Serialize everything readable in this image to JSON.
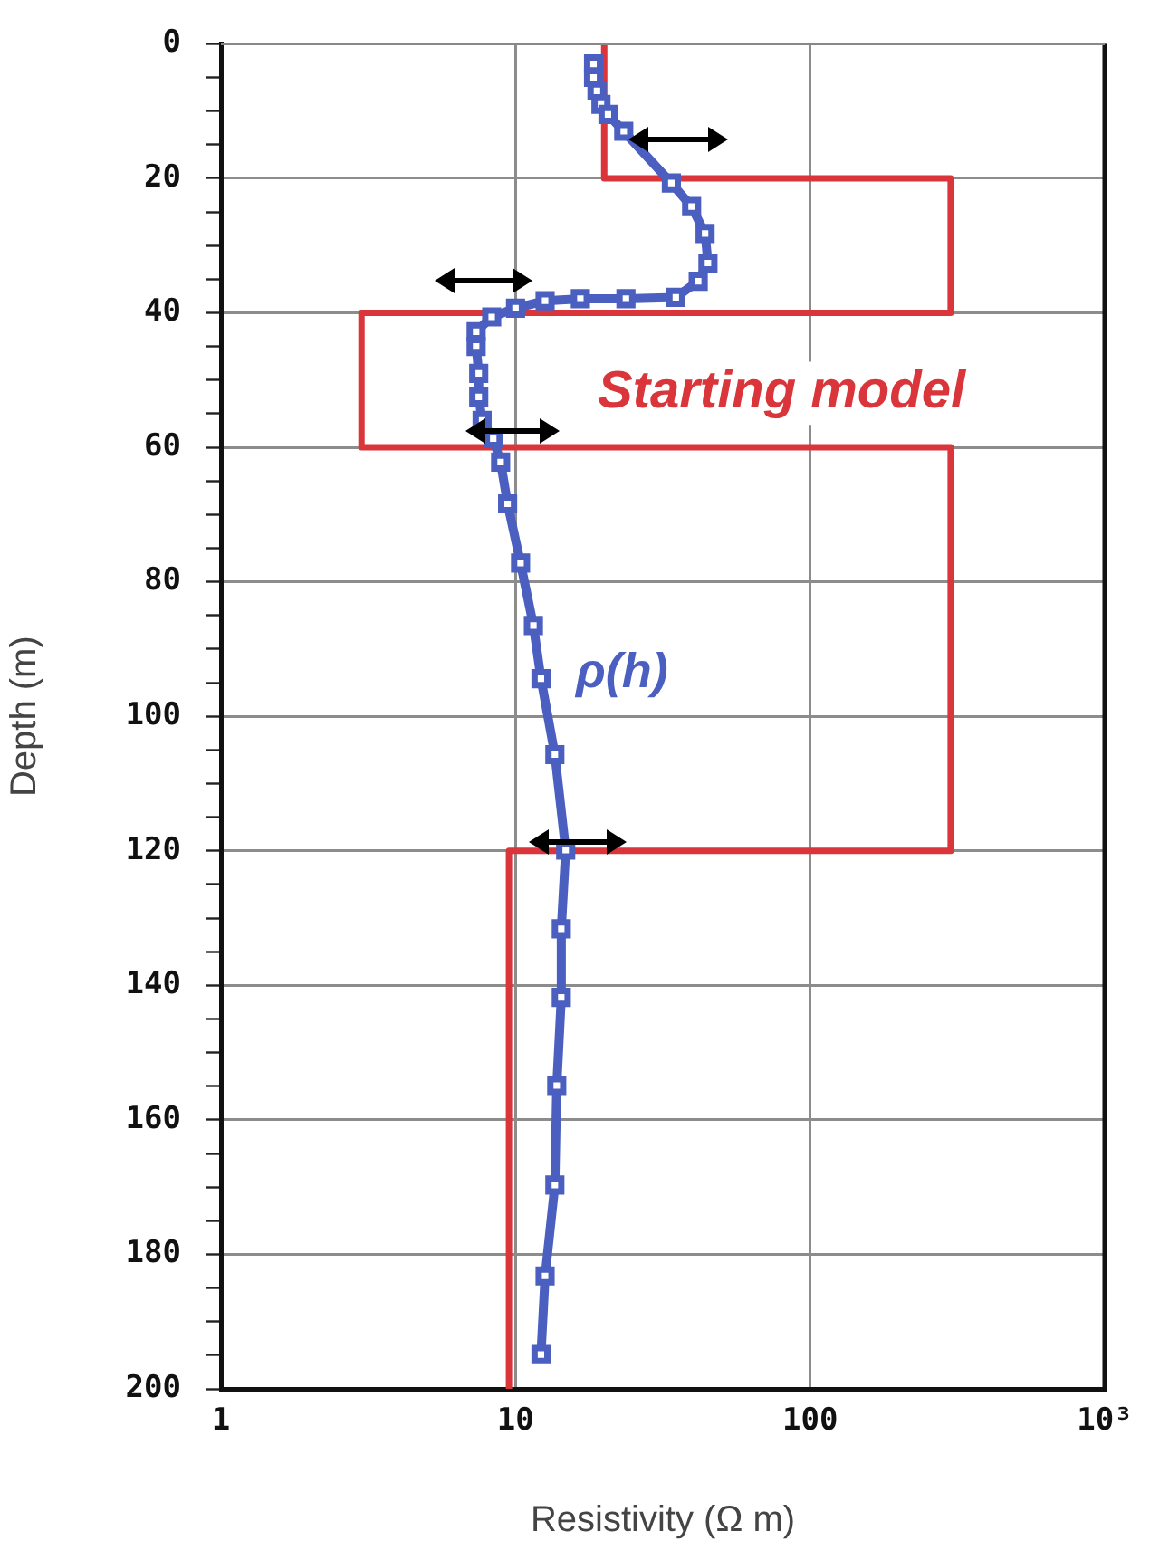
{
  "chart_data": {
    "type": "line",
    "xlabel": "Resistivity (Ω m)",
    "ylabel": "Depth (m)",
    "log": "x",
    "xlim": [
      1,
      1000
    ],
    "xticks": [
      1,
      10,
      100,
      {
        "value": 1000,
        "label": "10³"
      }
    ],
    "ylim": [
      200,
      0
    ],
    "yticks": [
      0,
      {
        "value": 5,
        "label": null
      },
      {
        "value": 10,
        "label": null
      },
      {
        "value": 15,
        "label": null
      },
      20,
      {
        "value": 25,
        "label": null
      },
      {
        "value": 30,
        "label": null
      },
      {
        "value": 35,
        "label": null
      },
      40,
      {
        "value": 45,
        "label": null
      },
      {
        "value": 50,
        "label": null
      },
      {
        "value": 55,
        "label": null
      },
      60,
      {
        "value": 65,
        "label": null
      },
      {
        "value": 70,
        "label": null
      },
      {
        "value": 75,
        "label": null
      },
      80,
      {
        "value": 85,
        "label": null
      },
      {
        "value": 90,
        "label": null
      },
      {
        "value": 95,
        "label": null
      },
      100,
      {
        "value": 105,
        "label": null
      },
      {
        "value": 110,
        "label": null
      },
      {
        "value": 115,
        "label": null
      },
      120,
      {
        "value": 125,
        "label": null
      },
      {
        "value": 130,
        "label": null
      },
      {
        "value": 135,
        "label": null
      },
      140,
      {
        "value": 145,
        "label": null
      },
      {
        "value": 150,
        "label": null
      },
      {
        "value": 155,
        "label": null
      },
      160,
      {
        "value": 165,
        "label": null
      },
      {
        "value": 170,
        "label": null
      },
      {
        "value": 175,
        "label": null
      },
      180,
      {
        "value": 185,
        "label": null
      },
      {
        "value": 190,
        "label": null
      },
      {
        "value": 195,
        "label": null
      },
      200
    ],
    "grid": true,
    "legend": false,
    "series": [
      {
        "name": "Starting model",
        "color": "#d9353a",
        "marker": "none",
        "x": [
          20,
          20,
          300,
          300,
          3,
          3,
          300,
          300,
          9.5,
          9.5
        ],
        "values": [
          0,
          20,
          20,
          40,
          40,
          60,
          60,
          120,
          120,
          200
        ]
      },
      {
        "name": "ρ(h)",
        "color": "#4a5fbf",
        "marker": "square",
        "x": [
          18.4,
          18.4,
          18.9,
          19.5,
          20.6,
          23.3,
          33.8,
          39.6,
          44,
          45,
          41.7,
          35,
          23.7,
          16.6,
          12.6,
          10,
          8.3,
          7.35,
          7.35,
          7.5,
          7.5,
          7.7,
          8.4,
          8.9,
          9.4,
          10.4,
          11.5,
          12.2,
          13.6,
          14.8,
          14.3,
          14.3,
          13.8,
          13.6,
          12.6,
          12.2
        ],
        "values": [
          3,
          5,
          7,
          9,
          10.5,
          13,
          20.7,
          24.2,
          28.2,
          32.6,
          35.3,
          37.7,
          37.9,
          37.9,
          38.2,
          39.3,
          40.6,
          42.8,
          45,
          49,
          52.5,
          56,
          58.7,
          62.2,
          68.4,
          77.2,
          86.5,
          94.4,
          105.7,
          119.9,
          131.6,
          141.8,
          154.9,
          169.7,
          183.2,
          194.9
        ]
      }
    ]
  }
}
